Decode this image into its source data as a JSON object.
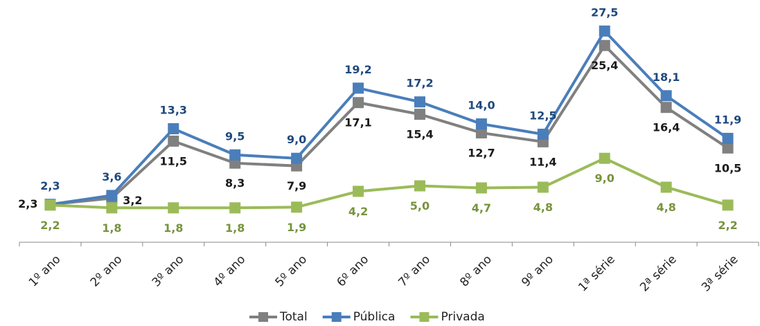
{
  "chart_data": {
    "type": "line",
    "categories": [
      "1º ano",
      "2º ano",
      "3º ano",
      "4º ano",
      "5º ano",
      "6º ano",
      "7º ano",
      "8º ano",
      "9º ano",
      "1ª série",
      "2ª série",
      "3ª série"
    ],
    "series": [
      {
        "name": "Total",
        "color": "#808080",
        "label_color": "#1a1a1a",
        "values": [
          2.3,
          3.2,
          11.5,
          8.3,
          7.9,
          17.1,
          15.4,
          12.7,
          11.4,
          25.4,
          16.4,
          10.5
        ],
        "value_labels": [
          "2,3",
          "3,2",
          "11,5",
          "8,3",
          "7,9",
          "17,1",
          "15,4",
          "12,7",
          "11,4",
          "25,4",
          "16,4",
          "10,5"
        ]
      },
      {
        "name": "Pública",
        "color": "#4a7ebb",
        "label_color": "#1f497d",
        "values": [
          2.3,
          3.6,
          13.3,
          9.5,
          9.0,
          19.2,
          17.2,
          14.0,
          12.5,
          27.5,
          18.1,
          11.9
        ],
        "value_labels": [
          "2,3",
          "3,6",
          "13,3",
          "9,5",
          "9,0",
          "19,2",
          "17,2",
          "14,0",
          "12,5",
          "27,5",
          "18,1",
          "11,9"
        ]
      },
      {
        "name": "Privada",
        "color": "#9bbb59",
        "label_color": "#77933c",
        "values": [
          2.2,
          1.8,
          1.8,
          1.8,
          1.9,
          4.2,
          5.0,
          4.7,
          4.8,
          9.0,
          4.8,
          2.2
        ],
        "value_labels": [
          "2,2",
          "1,8",
          "1,8",
          "1,8",
          "1,9",
          "4,2",
          "5,0",
          "4,7",
          "4,8",
          "9,0",
          "4,8",
          "2,2"
        ]
      }
    ],
    "ylim": [
      -3.2,
      30
    ],
    "legend": "bottom"
  }
}
